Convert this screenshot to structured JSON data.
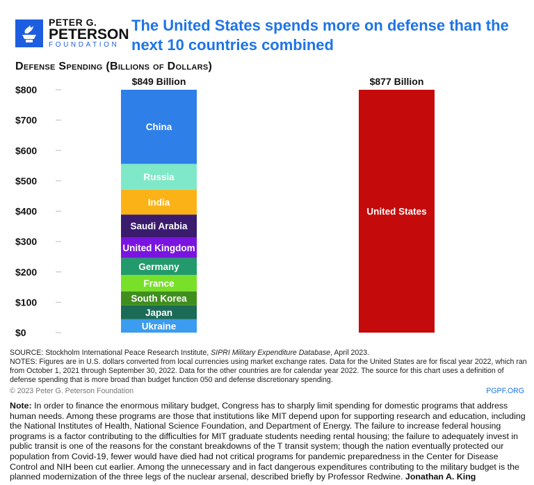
{
  "header": {
    "logo": {
      "line1": "PETER G.",
      "line2": "PETERSON",
      "line3": "FOUNDATION"
    },
    "title": "The United States spends more on defense than the next 10 countries combined"
  },
  "chart_data": {
    "type": "bar",
    "stacked": true,
    "subtitle": "Defense Spending (Billions of Dollars)",
    "ylim": [
      0,
      800
    ],
    "yticks": [
      "$0",
      "$100",
      "$200",
      "$300",
      "$400",
      "$500",
      "$600",
      "$700",
      "$800"
    ],
    "bars": [
      {
        "total_label": "$849 Billion",
        "total": 849,
        "segments": [
          {
            "name": "Ukraine",
            "value": 44,
            "color": "#3b9cf0"
          },
          {
            "name": "Japan",
            "value": 46,
            "color": "#1b6b57"
          },
          {
            "name": "South Korea",
            "value": 46,
            "color": "#3f8e1e"
          },
          {
            "name": "France",
            "value": 54,
            "color": "#79e02a"
          },
          {
            "name": "Germany",
            "value": 56,
            "color": "#229a6c"
          },
          {
            "name": "United Kingdom",
            "value": 68,
            "color": "#7a14e0"
          },
          {
            "name": "Saudi Arabia",
            "value": 75,
            "color": "#3a1b6e"
          },
          {
            "name": "India",
            "value": 81,
            "color": "#fbb217"
          },
          {
            "name": "Russia",
            "value": 86,
            "color": "#7fe8c8"
          },
          {
            "name": "China",
            "value": 292,
            "color": "#2e7fe8"
          }
        ]
      },
      {
        "total_label": "$877 Billion",
        "total": 877,
        "segments": [
          {
            "name": "United States",
            "value": 877,
            "color": "#c40a0a"
          }
        ]
      }
    ]
  },
  "notes": {
    "source_prefix": "SOURCE: Stockholm International Peace Research Institute, ",
    "source_italic": "SIPRI Military Expenditure Database",
    "source_suffix": ", April 2023.",
    "notes": "NOTES: Figures are in U.S. dollars converted from local currencies using market exchange rates. Data for the United States are for fiscal year 2022, which ran from October 1, 2021 through September 30, 2022. Data for the other countries are for calendar year 2022. The source for this chart uses a definition of defense spending that is more broad than budget function 050 and defense discretionary spending.",
    "copyright": "© 2023 Peter G. Peterson Foundation",
    "site": "PGPF.ORG"
  },
  "footnote": {
    "label": "Note:",
    "text": " In order to finance the enormous military budget, Congress has to sharply limit spending for domestic programs that address human needs. Among these programs are those that institutions like MIT depend upon for supporting research and education, including the National Institutes of Health, National Science Foundation, and Department of Energy. The failure to increase federal housing programs is a factor contributing to the difficulties for MIT graduate students needing rental housing; the failure to adequately invest in public transit is one of the reasons for the constant breakdowns of the T transit system; though the nation eventually protected our population from Covid-19, fewer would have died had not critical programs for pandemic preparedness in the Center for Disease Control and NIH been cut earlier. Among the unnecessary and in fact dangerous expenditures contributing to the military budget is the planned modernization of the three legs of the nuclear arsenal, described briefly by Professor Redwine. ",
    "author": "Jonathan A. King"
  }
}
